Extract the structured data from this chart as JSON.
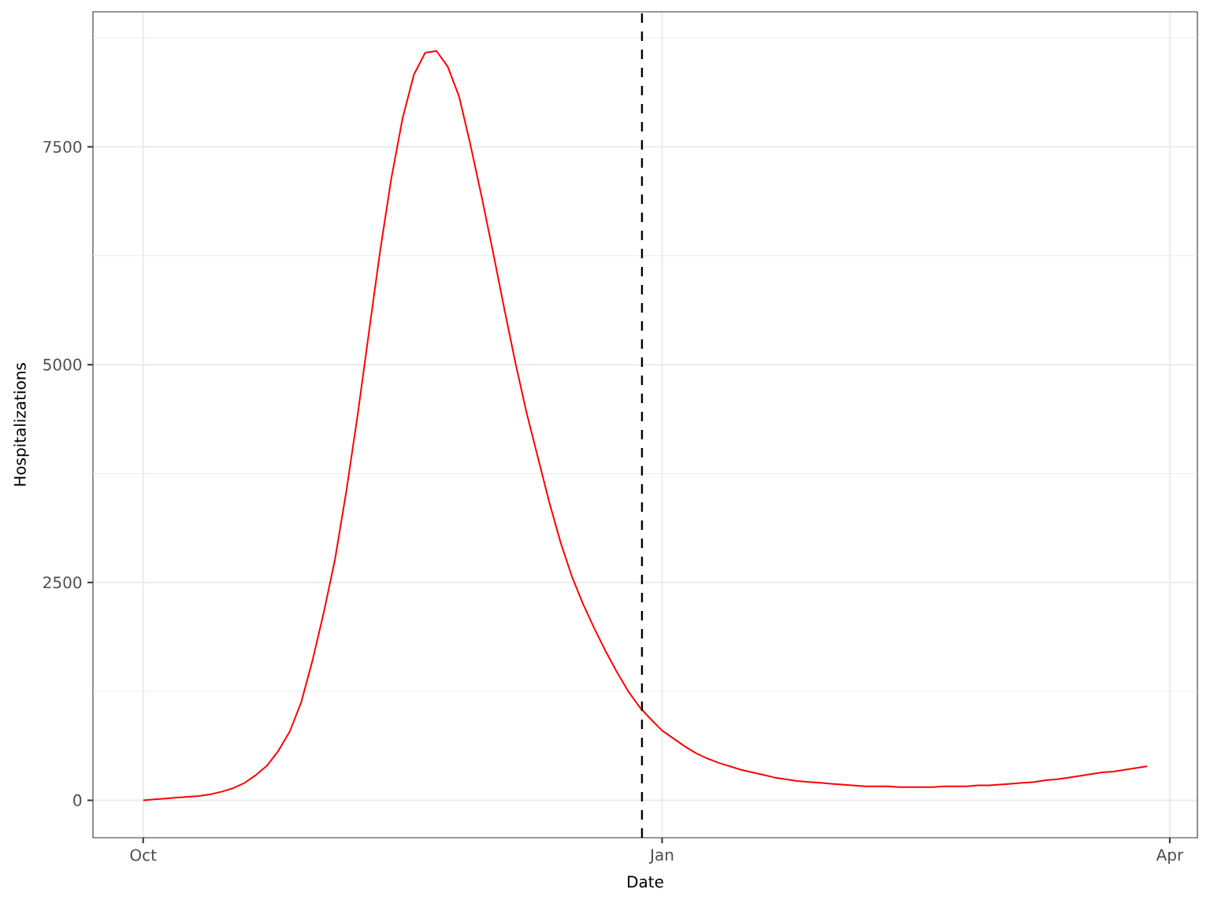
{
  "chart_data": {
    "type": "line",
    "xlabel": "Date",
    "ylabel": "Hospitalizations",
    "categories": [
      "Oct",
      null,
      null,
      null,
      null,
      null,
      null,
      null,
      null,
      null,
      null,
      null,
      null,
      null,
      null,
      null,
      null,
      null,
      null,
      null,
      null,
      null,
      null,
      null,
      null,
      null,
      null,
      null,
      null,
      null,
      null,
      null,
      null,
      null,
      null,
      null,
      null,
      null,
      null,
      null,
      null,
      null,
      null,
      null,
      null,
      null,
      "Jan",
      null,
      null,
      null,
      null,
      null,
      null,
      null,
      null,
      null,
      null,
      null,
      null,
      null,
      null,
      null,
      null,
      null,
      null,
      null,
      null,
      null,
      null,
      null,
      null,
      null,
      null,
      null,
      null,
      null,
      null,
      null,
      null,
      null,
      null,
      null,
      null,
      null,
      null,
      null,
      null,
      null,
      null,
      null,
      null,
      "Apr"
    ],
    "values": [
      0,
      10,
      20,
      30,
      40,
      50,
      70,
      100,
      140,
      200,
      290,
      400,
      570,
      790,
      1120,
      1600,
      2150,
      2760,
      3540,
      4410,
      5360,
      6300,
      7140,
      7830,
      8330,
      8580,
      8600,
      8420,
      8080,
      7530,
      6930,
      6300,
      5650,
      5020,
      4440,
      3930,
      3420,
      2960,
      2570,
      2250,
      1970,
      1710,
      1470,
      1250,
      1070,
      930,
      800,
      710,
      620,
      540,
      480,
      430,
      390,
      350,
      320,
      290,
      260,
      240,
      220,
      210,
      200,
      190,
      180,
      170,
      160,
      160,
      160,
      150,
      150,
      150,
      150,
      160,
      160,
      160,
      170,
      170,
      180,
      190,
      200,
      210,
      230,
      240,
      260,
      280,
      300,
      320,
      330,
      350,
      370,
      390,
      null,
      null
    ],
    "color": "#ff0000",
    "ylim": [
      -430,
      9050
    ],
    "yticks": [
      0,
      2500,
      5000,
      7500,
      {
        "value": 1250,
        "label": null
      },
      {
        "value": 3750,
        "label": null
      },
      {
        "value": 6250,
        "label": null
      },
      {
        "value": 8750,
        "label": null
      }
    ],
    "grid": true
  }
}
